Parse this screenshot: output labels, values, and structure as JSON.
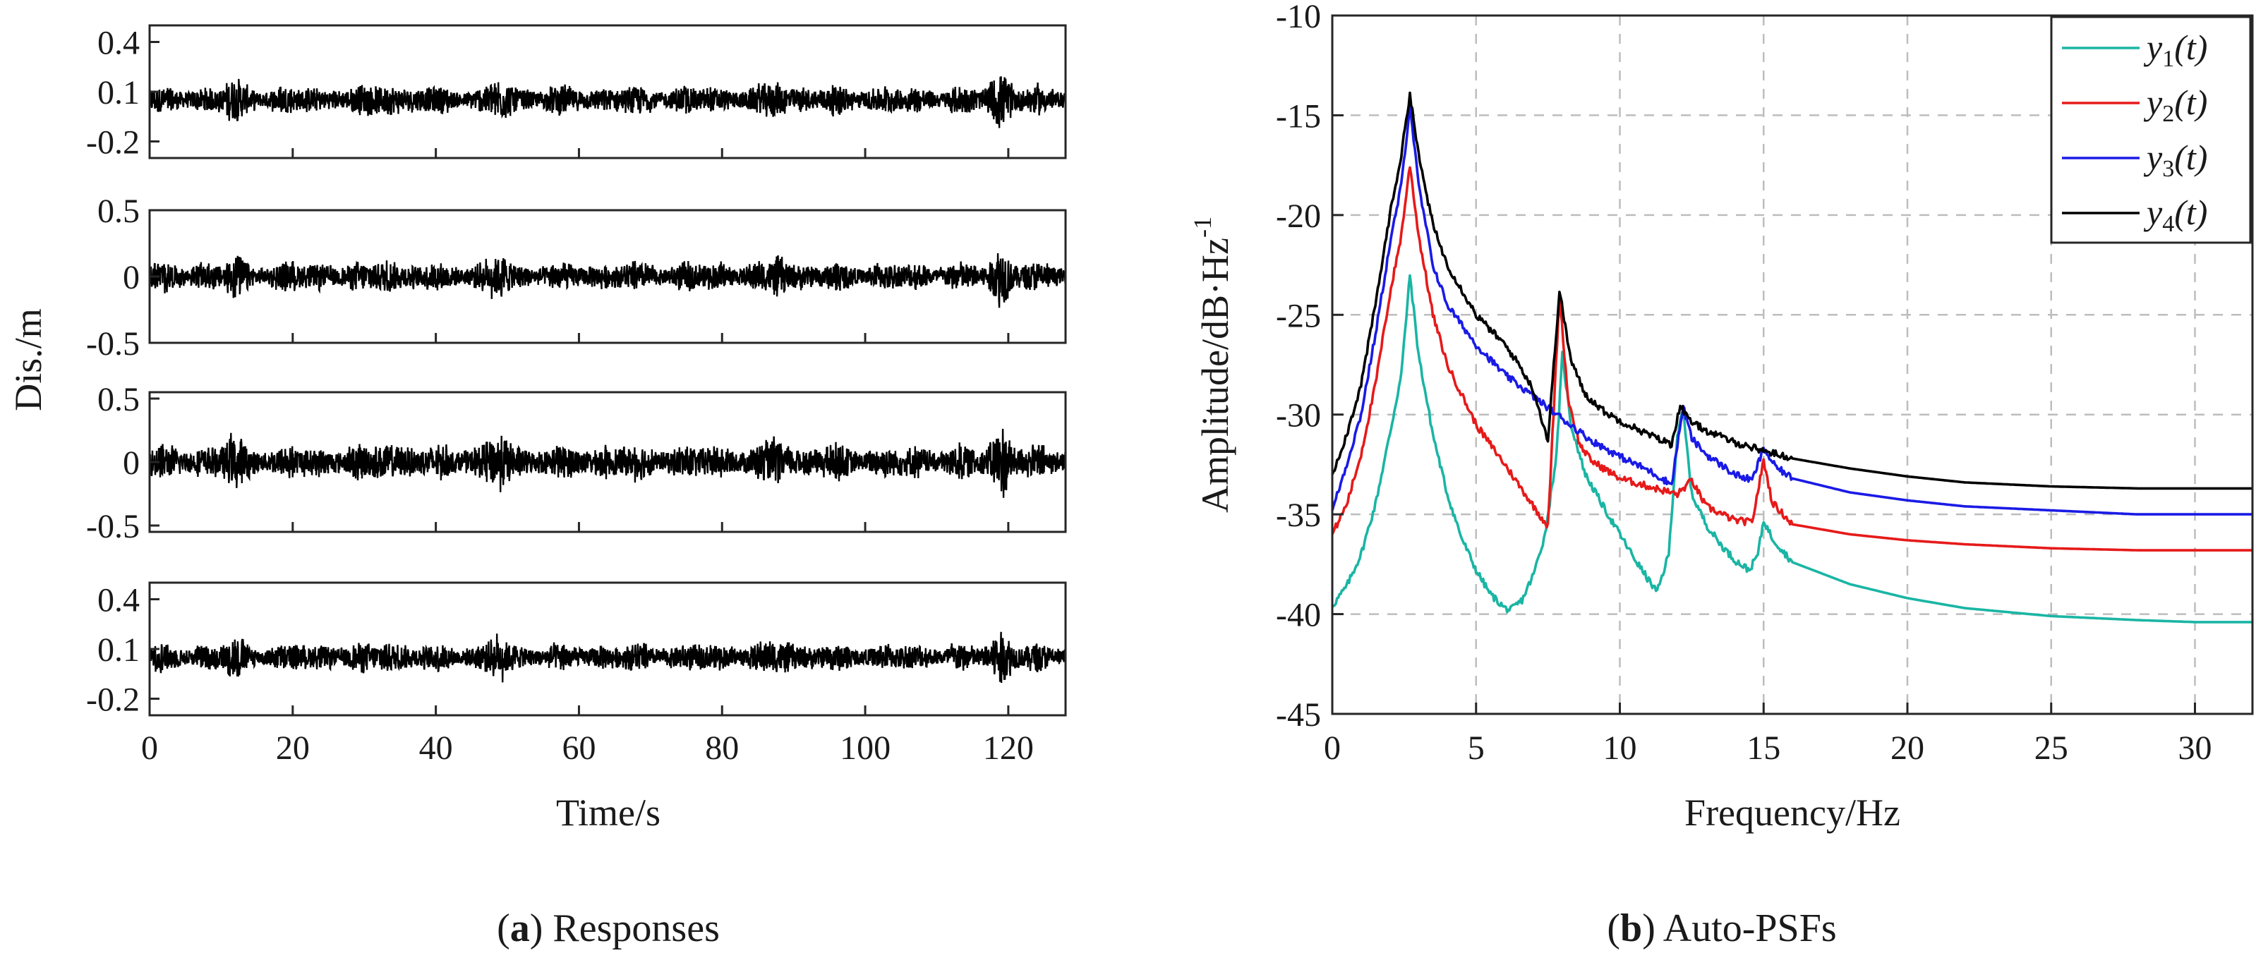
{
  "captions": {
    "a": {
      "letter": "a",
      "text": "Responses"
    },
    "b": {
      "letter": "b",
      "text": "Auto-PSFs"
    }
  },
  "chart_data": [
    {
      "type": "line",
      "title": "",
      "xlabel": "Time/s",
      "ylabel": "Dis./m",
      "xlim": [
        0,
        128
      ],
      "x_ticks": [
        "0",
        "20",
        "40",
        "60",
        "80",
        "100",
        "120"
      ],
      "panels": [
        {
          "name": "y1",
          "ylim": [
            -0.3,
            0.5
          ],
          "y_ticks": [
            "0.4",
            "0.1",
            "-0.2"
          ],
          "y_tick_values": [
            0.4,
            0.1,
            -0.2
          ],
          "baseline": 0.05,
          "amp": 0.1
        },
        {
          "name": "y2",
          "ylim": [
            -0.5,
            0.5
          ],
          "y_ticks": [
            "0.5",
            "0",
            "-0.5"
          ],
          "y_tick_values": [
            0.5,
            0,
            -0.5
          ],
          "baseline": 0,
          "amp": 0.13
        },
        {
          "name": "y3",
          "ylim": [
            -0.55,
            0.55
          ],
          "y_ticks": [
            "0.5",
            "0",
            "-0.5"
          ],
          "y_tick_values": [
            0.5,
            0,
            -0.5
          ],
          "baseline": 0,
          "amp": 0.16
        },
        {
          "name": "y4",
          "ylim": [
            -0.3,
            0.5
          ],
          "y_ticks": [
            "0.4",
            "0.1",
            "-0.2"
          ],
          "y_tick_values": [
            0.4,
            0.1,
            -0.2
          ],
          "baseline": 0.05,
          "amp": 0.1
        }
      ],
      "bursts": [
        [
          12,
          1.6
        ],
        [
          33,
          1.5
        ],
        [
          49,
          1.7
        ],
        [
          88,
          1.5
        ],
        [
          119,
          2.2
        ]
      ],
      "color": "#000000"
    },
    {
      "type": "line",
      "title": "",
      "xlabel": "Frequency/Hz",
      "ylabel": "Amplitude/dB·Hz",
      "ylabel_sup": "-1",
      "xlim": [
        0,
        32
      ],
      "ylim": [
        -45,
        -10
      ],
      "grid": true,
      "legend_position": "top-right",
      "x_ticks": [
        "0",
        "5",
        "10",
        "15",
        "20",
        "25",
        "30"
      ],
      "x_tick_values": [
        0,
        5,
        10,
        15,
        20,
        25,
        30
      ],
      "y_ticks": [
        "-10",
        "-15",
        "-20",
        "-25",
        "-30",
        "-35",
        "-40",
        "-45"
      ],
      "y_tick_values": [
        -10,
        -15,
        -20,
        -25,
        -30,
        -35,
        -40,
        -45
      ],
      "series": [
        {
          "name": "y",
          "sub": "1",
          "arg": "(t)",
          "color": "#1ab5a4",
          "x": [
            0,
            0.5,
            1,
            1.5,
            2,
            2.4,
            2.7,
            3.0,
            3.5,
            4,
            4.5,
            5,
            5.5,
            6,
            6.2,
            6.6,
            7,
            7.4,
            7.8,
            8.0,
            8.3,
            8.8,
            9.5,
            10,
            10.5,
            11,
            11.3,
            11.7,
            12,
            12.2,
            12.5,
            13,
            13.5,
            14,
            14.5,
            14.8,
            15.0,
            15.3,
            16,
            18,
            20,
            22,
            25,
            28,
            30,
            32
          ],
          "y": [
            -39.6,
            -38.6,
            -37,
            -34.5,
            -31,
            -28,
            -23,
            -27,
            -31,
            -34,
            -36.2,
            -37.8,
            -39,
            -39.7,
            -39.8,
            -39.3,
            -38,
            -36,
            -32,
            -27,
            -30.5,
            -33,
            -34.8,
            -36,
            -37.2,
            -38.3,
            -38.9,
            -37,
            -31,
            -29.8,
            -34,
            -35.5,
            -36.5,
            -37.3,
            -37.8,
            -37,
            -35.3,
            -36.2,
            -37.4,
            -38.5,
            -39.2,
            -39.7,
            -40.1,
            -40.3,
            -40.4,
            -40.4
          ]
        },
        {
          "name": "y",
          "sub": "2",
          "arg": "(t)",
          "color": "#e61a1a",
          "x": [
            0,
            0.5,
            1,
            1.5,
            2,
            2.4,
            2.7,
            3.0,
            3.5,
            4,
            5,
            6,
            7,
            7.5,
            7.9,
            8.2,
            8.6,
            9,
            10,
            11,
            12,
            12.5,
            13,
            14,
            14.6,
            15.0,
            15.3,
            16,
            18,
            20,
            22,
            25,
            28,
            30,
            32
          ],
          "y": [
            -36,
            -34.5,
            -32,
            -28.5,
            -24,
            -21,
            -17.5,
            -21,
            -25,
            -27.5,
            -30.5,
            -32.5,
            -34.6,
            -35.6,
            -24,
            -29.2,
            -31.5,
            -32.3,
            -33.2,
            -33.6,
            -34.0,
            -33.3,
            -34.6,
            -35.3,
            -35.4,
            -32.3,
            -34.4,
            -35.5,
            -36.0,
            -36.3,
            -36.5,
            -36.7,
            -36.8,
            -36.8,
            -36.8
          ]
        },
        {
          "name": "y",
          "sub": "3",
          "arg": "(t)",
          "color": "#1a1ae6",
          "x": [
            0,
            0.5,
            1,
            1.5,
            2,
            2.4,
            2.7,
            3.0,
            3.5,
            4,
            5,
            6,
            7,
            8,
            9,
            10,
            11,
            11.8,
            12.2,
            12.5,
            13,
            14,
            14.6,
            15.0,
            15.4,
            16,
            18,
            20,
            22,
            25,
            28,
            30,
            32
          ],
          "y": [
            -34.8,
            -32.5,
            -30,
            -26,
            -21.5,
            -18.5,
            -14.5,
            -18.5,
            -22.5,
            -24.5,
            -26.5,
            -28,
            -29.1,
            -30.2,
            -31.3,
            -32.1,
            -32.8,
            -33.5,
            -29.6,
            -31.2,
            -32,
            -33,
            -33.3,
            -31.7,
            -32.6,
            -33.2,
            -33.9,
            -34.3,
            -34.6,
            -34.8,
            -35,
            -35,
            -35
          ]
        },
        {
          "name": "y",
          "sub": "4",
          "arg": "(t)",
          "color": "#000000",
          "x": [
            0,
            0.5,
            1,
            1.5,
            2,
            2.4,
            2.7,
            3.0,
            3.5,
            4,
            5,
            6,
            6.5,
            7,
            7.5,
            7.9,
            8.3,
            8.8,
            9.5,
            10,
            11,
            11.8,
            12.1,
            12.4,
            13,
            14,
            15,
            16,
            18,
            20,
            22,
            25,
            28,
            30,
            32
          ],
          "y": [
            -33,
            -31,
            -28.5,
            -24.5,
            -20,
            -17,
            -13.9,
            -17,
            -20.5,
            -22.5,
            -25,
            -26.5,
            -27.5,
            -28.8,
            -31.3,
            -23.8,
            -27.3,
            -29,
            -29.9,
            -30.3,
            -31.0,
            -31.5,
            -29.5,
            -30.3,
            -30.8,
            -31.4,
            -31.8,
            -32.2,
            -32.7,
            -33.1,
            -33.4,
            -33.6,
            -33.7,
            -33.7,
            -33.7
          ]
        }
      ]
    }
  ]
}
